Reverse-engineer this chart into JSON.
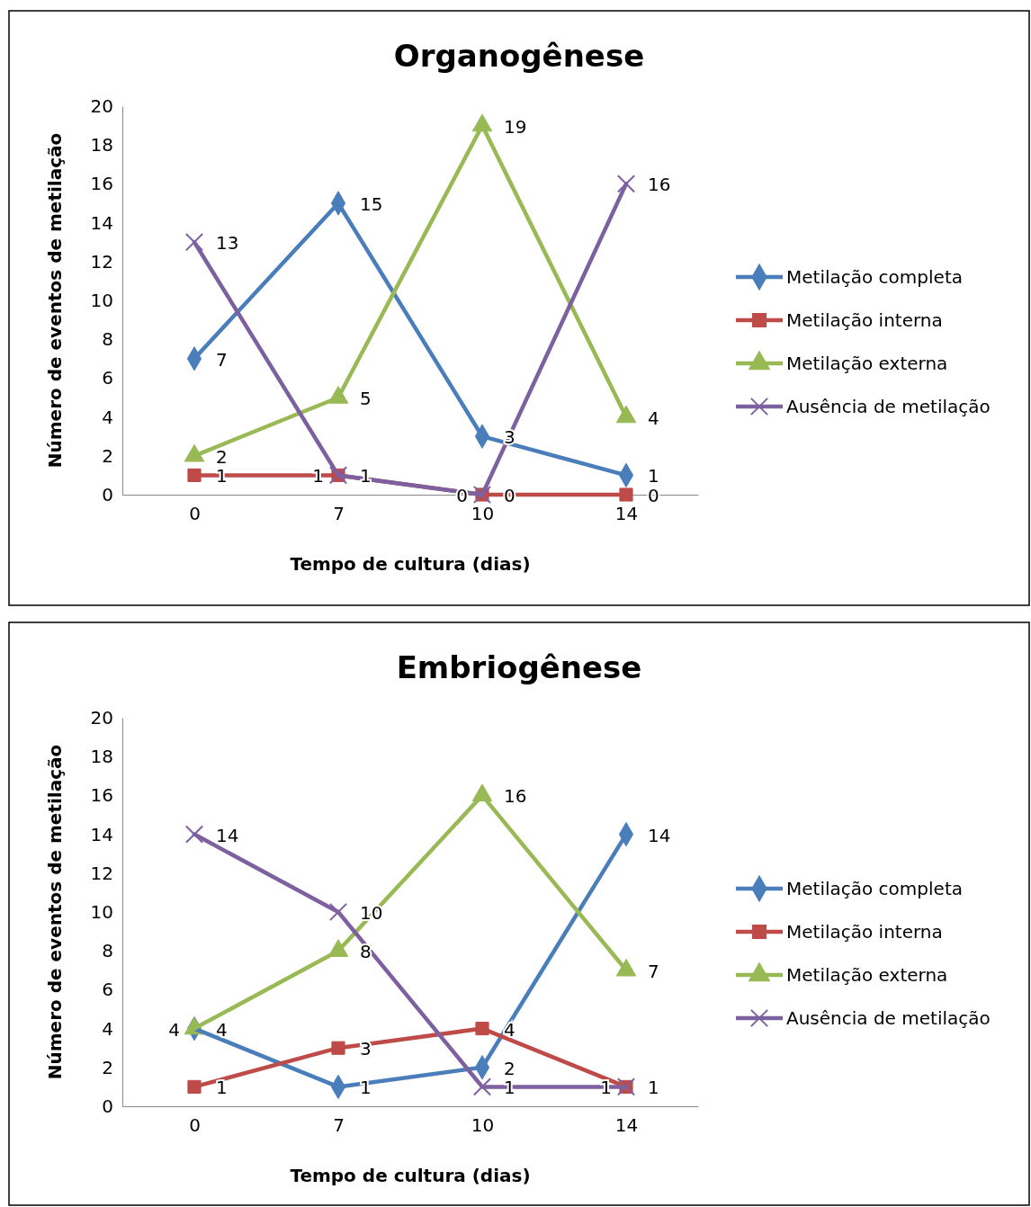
{
  "chart_data": [
    {
      "type": "line",
      "title": "Organogênese",
      "xlabel": "Tempo de cultura (dias)",
      "ylabel": "Número de eventos de metilação",
      "categories": [
        "0",
        "7",
        "10",
        "14"
      ],
      "ylim": [
        0,
        20
      ],
      "yticks": [
        0,
        2,
        4,
        6,
        8,
        10,
        12,
        14,
        16,
        18,
        20
      ],
      "grid": false,
      "legend": "right",
      "data_labels": true,
      "series": [
        {
          "name": "Metilação completa",
          "color": "#4a7ebb",
          "marker": "diamond",
          "values": [
            7,
            15,
            3,
            1
          ]
        },
        {
          "name": "Metilação interna",
          "color": "#be4b48",
          "marker": "square",
          "values": [
            1,
            1,
            0,
            0
          ]
        },
        {
          "name": "Metilação externa",
          "color": "#98b954",
          "marker": "triangle",
          "values": [
            2,
            5,
            19,
            4
          ]
        },
        {
          "name": "Ausência de metilação",
          "color": "#7d60a0",
          "marker": "cross",
          "values": [
            13,
            1,
            0,
            16
          ]
        }
      ]
    },
    {
      "type": "line",
      "title": "Embriogênese",
      "xlabel": "Tempo de cultura (dias)",
      "ylabel": "Número de eventos de metilação",
      "categories": [
        "0",
        "7",
        "10",
        "14"
      ],
      "ylim": [
        0,
        20
      ],
      "yticks": [
        0,
        2,
        4,
        6,
        8,
        10,
        12,
        14,
        16,
        18,
        20
      ],
      "grid": false,
      "legend": "right",
      "data_labels": true,
      "series": [
        {
          "name": "Metilação completa",
          "color": "#4a7ebb",
          "marker": "diamond",
          "values": [
            4,
            1,
            2,
            14
          ]
        },
        {
          "name": "Metilação interna",
          "color": "#be4b48",
          "marker": "square",
          "values": [
            1,
            3,
            4,
            1
          ]
        },
        {
          "name": "Metilação externa",
          "color": "#98b954",
          "marker": "triangle",
          "values": [
            4,
            8,
            16,
            7
          ]
        },
        {
          "name": "Ausência de metilação",
          "color": "#7d60a0",
          "marker": "cross",
          "values": [
            14,
            10,
            1,
            1
          ]
        }
      ]
    }
  ]
}
